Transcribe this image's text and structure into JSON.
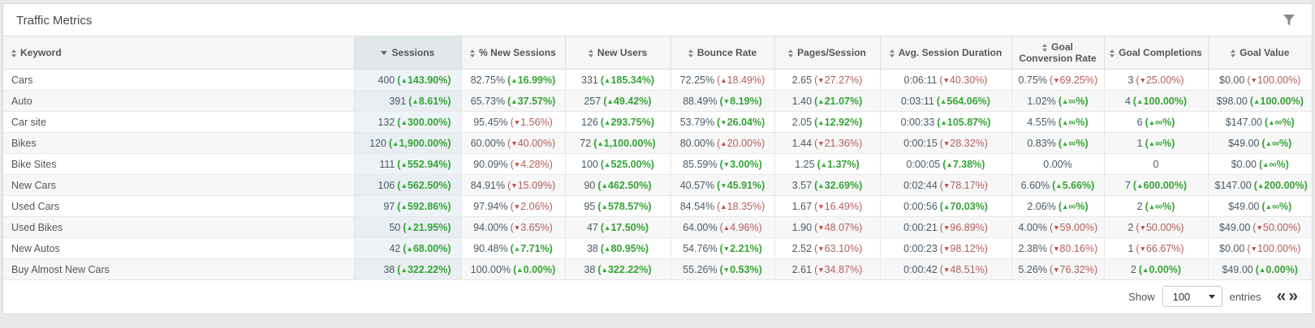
{
  "panel": {
    "title": "Traffic Metrics"
  },
  "colors": {
    "good": "#36a336",
    "bad": "#b35d5d",
    "good_arrow": "#2fae2f",
    "bad_arrow": "#c9463a",
    "sorted_column_bg": "#edf3f7",
    "sorted_header_bg": "#e1e7ea"
  },
  "icons": {
    "filter-icon": "funnel",
    "sort-icon": "up-down-triangles",
    "sort-desc-icon": "down-triangle",
    "trend-up-icon": "▲",
    "trend-down-icon": "▼",
    "prev-page-icon": "«",
    "next-page-icon": "»"
  },
  "table": {
    "columns": [
      {
        "label": "Keyword",
        "sort": "both",
        "align": "left"
      },
      {
        "label": "Sessions",
        "sort": "desc",
        "align": "right",
        "highlight": true
      },
      {
        "label": "% New Sessions",
        "sort": "both"
      },
      {
        "label": "New Users",
        "sort": "both"
      },
      {
        "label": "Bounce Rate",
        "sort": "both"
      },
      {
        "label": "Pages/Session",
        "sort": "both"
      },
      {
        "label": "Avg. Session Duration",
        "sort": "both"
      },
      {
        "label": "Goal Conversion Rate",
        "sort": "both"
      },
      {
        "label": "Goal Completions",
        "sort": "both"
      },
      {
        "label": "Goal Value",
        "sort": "both"
      }
    ],
    "rows": [
      {
        "keyword": "Cars",
        "metrics": [
          {
            "v": "400",
            "a": "up",
            "d": "143.90%",
            "t": "good"
          },
          {
            "v": "82.75%",
            "a": "up",
            "d": "16.99%",
            "t": "good"
          },
          {
            "v": "331",
            "a": "up",
            "d": "185.34%",
            "t": "good"
          },
          {
            "v": "72.25%",
            "a": "up",
            "d": "18.49%",
            "t": "bad"
          },
          {
            "v": "2.65",
            "a": "down",
            "d": "27.27%",
            "t": "bad"
          },
          {
            "v": "0:06:11",
            "a": "down",
            "d": "40.30%",
            "t": "bad"
          },
          {
            "v": "0.75%",
            "a": "down",
            "d": "69.25%",
            "t": "bad"
          },
          {
            "v": "3",
            "a": "down",
            "d": "25.00%",
            "t": "bad"
          },
          {
            "v": "$0.00",
            "a": "down",
            "d": "100.00%",
            "t": "bad"
          }
        ]
      },
      {
        "keyword": "Auto",
        "metrics": [
          {
            "v": "391",
            "a": "up",
            "d": "8.61%",
            "t": "good"
          },
          {
            "v": "65.73%",
            "a": "up",
            "d": "37.57%",
            "t": "good"
          },
          {
            "v": "257",
            "a": "up",
            "d": "49.42%",
            "t": "good"
          },
          {
            "v": "88.49%",
            "a": "down",
            "d": "8.19%",
            "t": "good"
          },
          {
            "v": "1.40",
            "a": "up",
            "d": "21.07%",
            "t": "good"
          },
          {
            "v": "0:03:11",
            "a": "up",
            "d": "564.06%",
            "t": "good"
          },
          {
            "v": "1.02%",
            "a": "up",
            "d": "∞%",
            "t": "good"
          },
          {
            "v": "4",
            "a": "up",
            "d": "100.00%",
            "t": "good"
          },
          {
            "v": "$98.00",
            "a": "up",
            "d": "100.00%",
            "t": "good"
          }
        ]
      },
      {
        "keyword": "Car site",
        "metrics": [
          {
            "v": "132",
            "a": "up",
            "d": "300.00%",
            "t": "good"
          },
          {
            "v": "95.45%",
            "a": "down",
            "d": "1.56%",
            "t": "bad"
          },
          {
            "v": "126",
            "a": "up",
            "d": "293.75%",
            "t": "good"
          },
          {
            "v": "53.79%",
            "a": "down",
            "d": "26.04%",
            "t": "good"
          },
          {
            "v": "2.05",
            "a": "up",
            "d": "12.92%",
            "t": "good"
          },
          {
            "v": "0:00:33",
            "a": "up",
            "d": "105.87%",
            "t": "good"
          },
          {
            "v": "4.55%",
            "a": "up",
            "d": "∞%",
            "t": "good"
          },
          {
            "v": "6",
            "a": "up",
            "d": "∞%",
            "t": "good"
          },
          {
            "v": "$147.00",
            "a": "up",
            "d": "∞%",
            "t": "good"
          }
        ]
      },
      {
        "keyword": "Bikes",
        "metrics": [
          {
            "v": "120",
            "a": "up",
            "d": "1,900.00%",
            "t": "good"
          },
          {
            "v": "60.00%",
            "a": "down",
            "d": "40.00%",
            "t": "bad"
          },
          {
            "v": "72",
            "a": "up",
            "d": "1,100.00%",
            "t": "good"
          },
          {
            "v": "80.00%",
            "a": "up",
            "d": "20.00%",
            "t": "bad"
          },
          {
            "v": "1.44",
            "a": "down",
            "d": "21.36%",
            "t": "bad"
          },
          {
            "v": "0:00:15",
            "a": "down",
            "d": "28.32%",
            "t": "bad"
          },
          {
            "v": "0.83%",
            "a": "up",
            "d": "∞%",
            "t": "good"
          },
          {
            "v": "1",
            "a": "up",
            "d": "∞%",
            "t": "good"
          },
          {
            "v": "$49.00",
            "a": "up",
            "d": "∞%",
            "t": "good"
          }
        ]
      },
      {
        "keyword": "Bike Sites",
        "metrics": [
          {
            "v": "111",
            "a": "up",
            "d": "552.94%",
            "t": "good"
          },
          {
            "v": "90.09%",
            "a": "down",
            "d": "4.28%",
            "t": "bad"
          },
          {
            "v": "100",
            "a": "up",
            "d": "525.00%",
            "t": "good"
          },
          {
            "v": "85.59%",
            "a": "down",
            "d": "3.00%",
            "t": "good"
          },
          {
            "v": "1.25",
            "a": "up",
            "d": "1.37%",
            "t": "good"
          },
          {
            "v": "0:00:05",
            "a": "up",
            "d": "7.38%",
            "t": "good"
          },
          {
            "v": "0.00%"
          },
          {
            "v": "0"
          },
          {
            "v": "$0.00",
            "a": "up",
            "d": "∞%",
            "t": "good"
          }
        ]
      },
      {
        "keyword": "New Cars",
        "metrics": [
          {
            "v": "106",
            "a": "up",
            "d": "562.50%",
            "t": "good"
          },
          {
            "v": "84.91%",
            "a": "down",
            "d": "15.09%",
            "t": "bad"
          },
          {
            "v": "90",
            "a": "up",
            "d": "462.50%",
            "t": "good"
          },
          {
            "v": "40.57%",
            "a": "down",
            "d": "45.91%",
            "t": "good"
          },
          {
            "v": "3.57",
            "a": "up",
            "d": "32.69%",
            "t": "good"
          },
          {
            "v": "0:02:44",
            "a": "down",
            "d": "78.17%",
            "t": "bad"
          },
          {
            "v": "6.60%",
            "a": "up",
            "d": "5.66%",
            "t": "good"
          },
          {
            "v": "7",
            "a": "up",
            "d": "600.00%",
            "t": "good"
          },
          {
            "v": "$147.00",
            "a": "up",
            "d": "200.00%",
            "t": "good"
          }
        ]
      },
      {
        "keyword": "Used Cars",
        "metrics": [
          {
            "v": "97",
            "a": "up",
            "d": "592.86%",
            "t": "good"
          },
          {
            "v": "97.94%",
            "a": "down",
            "d": "2.06%",
            "t": "bad"
          },
          {
            "v": "95",
            "a": "up",
            "d": "578.57%",
            "t": "good"
          },
          {
            "v": "84.54%",
            "a": "up",
            "d": "18.35%",
            "t": "bad"
          },
          {
            "v": "1.67",
            "a": "down",
            "d": "16.49%",
            "t": "bad"
          },
          {
            "v": "0:00:56",
            "a": "up",
            "d": "70.03%",
            "t": "good"
          },
          {
            "v": "2.06%",
            "a": "up",
            "d": "∞%",
            "t": "good"
          },
          {
            "v": "2",
            "a": "up",
            "d": "∞%",
            "t": "good"
          },
          {
            "v": "$49.00",
            "a": "up",
            "d": "∞%",
            "t": "good"
          }
        ]
      },
      {
        "keyword": "Used Bikes",
        "metrics": [
          {
            "v": "50",
            "a": "up",
            "d": "21.95%",
            "t": "good"
          },
          {
            "v": "94.00%",
            "a": "down",
            "d": "3.65%",
            "t": "bad"
          },
          {
            "v": "47",
            "a": "up",
            "d": "17.50%",
            "t": "good"
          },
          {
            "v": "64.00%",
            "a": "up",
            "d": "4.96%",
            "t": "bad"
          },
          {
            "v": "1.90",
            "a": "down",
            "d": "48.07%",
            "t": "bad"
          },
          {
            "v": "0:00:21",
            "a": "down",
            "d": "96.89%",
            "t": "bad"
          },
          {
            "v": "4.00%",
            "a": "down",
            "d": "59.00%",
            "t": "bad"
          },
          {
            "v": "2",
            "a": "down",
            "d": "50.00%",
            "t": "bad"
          },
          {
            "v": "$49.00",
            "a": "down",
            "d": "50.00%",
            "t": "bad"
          }
        ]
      },
      {
        "keyword": "New Autos",
        "metrics": [
          {
            "v": "42",
            "a": "up",
            "d": "68.00%",
            "t": "good"
          },
          {
            "v": "90.48%",
            "a": "up",
            "d": "7.71%",
            "t": "good"
          },
          {
            "v": "38",
            "a": "up",
            "d": "80.95%",
            "t": "good"
          },
          {
            "v": "54.76%",
            "a": "down",
            "d": "2.21%",
            "t": "good"
          },
          {
            "v": "2.52",
            "a": "down",
            "d": "63.10%",
            "t": "bad"
          },
          {
            "v": "0:00:23",
            "a": "down",
            "d": "98.12%",
            "t": "bad"
          },
          {
            "v": "2.38%",
            "a": "down",
            "d": "80.16%",
            "t": "bad"
          },
          {
            "v": "1",
            "a": "down",
            "d": "66.67%",
            "t": "bad"
          },
          {
            "v": "$0.00",
            "a": "down",
            "d": "100.00%",
            "t": "bad"
          }
        ]
      },
      {
        "keyword": "Buy Almost New Cars",
        "metrics": [
          {
            "v": "38",
            "a": "up",
            "d": "322.22%",
            "t": "good"
          },
          {
            "v": "100.00%",
            "a": "up",
            "d": "0.00%",
            "t": "good"
          },
          {
            "v": "38",
            "a": "up",
            "d": "322.22%",
            "t": "good"
          },
          {
            "v": "55.26%",
            "a": "down",
            "d": "0.53%",
            "t": "good"
          },
          {
            "v": "2.61",
            "a": "down",
            "d": "34.87%",
            "t": "bad"
          },
          {
            "v": "0:00:42",
            "a": "down",
            "d": "48.51%",
            "t": "bad"
          },
          {
            "v": "5.26%",
            "a": "down",
            "d": "76.32%",
            "t": "bad"
          },
          {
            "v": "2",
            "a": "up",
            "d": "0.00%",
            "t": "good"
          },
          {
            "v": "$49.00",
            "a": "up",
            "d": "0.00%",
            "t": "good"
          }
        ]
      }
    ]
  },
  "footer": {
    "show_label": "Show",
    "entries_label": "entries",
    "page_size": "100"
  }
}
